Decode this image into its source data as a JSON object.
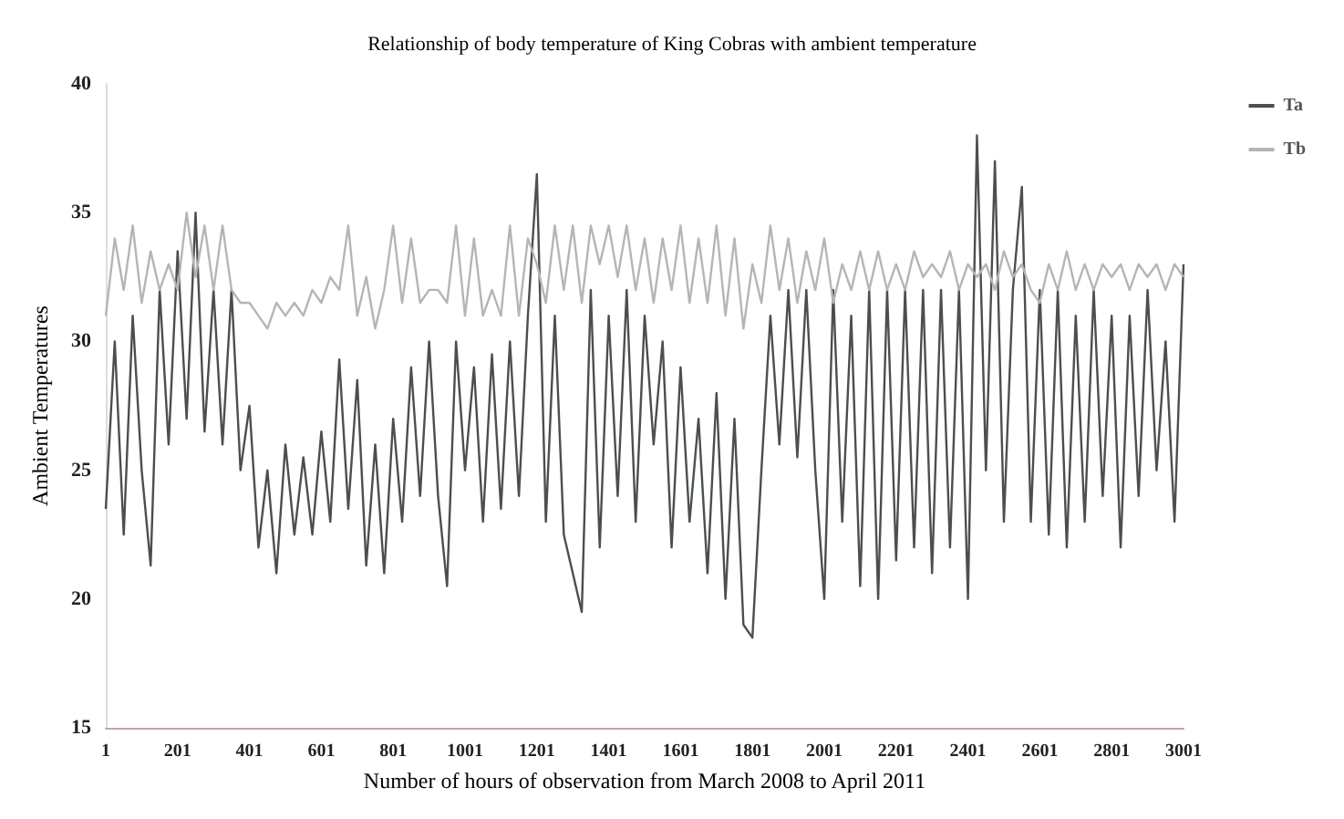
{
  "chart_data": {
    "type": "line",
    "title": "Relationship of body temperature of King Cobras with ambient temperature",
    "xlabel": "Number of hours of observation from March 2008 to April 2011",
    "ylabel": "Ambient Temperatures",
    "x": [
      1,
      26,
      51,
      76,
      101,
      126,
      151,
      176,
      201,
      226,
      251,
      276,
      301,
      326,
      351,
      376,
      401,
      426,
      451,
      476,
      501,
      526,
      551,
      576,
      601,
      626,
      651,
      676,
      701,
      726,
      751,
      776,
      801,
      826,
      851,
      876,
      901,
      926,
      951,
      976,
      1001,
      1026,
      1051,
      1076,
      1101,
      1126,
      1151,
      1176,
      1201,
      1226,
      1251,
      1276,
      1301,
      1326,
      1351,
      1376,
      1401,
      1426,
      1451,
      1476,
      1501,
      1526,
      1551,
      1576,
      1601,
      1626,
      1651,
      1676,
      1701,
      1726,
      1751,
      1776,
      1801,
      1826,
      1851,
      1876,
      1901,
      1926,
      1951,
      1976,
      2001,
      2026,
      2051,
      2076,
      2101,
      2126,
      2151,
      2176,
      2201,
      2226,
      2251,
      2276,
      2301,
      2326,
      2351,
      2376,
      2401,
      2426,
      2451,
      2476,
      2501,
      2526,
      2551,
      2576,
      2601,
      2626,
      2651,
      2676,
      2701,
      2726,
      2751,
      2776,
      2801,
      2826,
      2851,
      2876,
      2901,
      2926,
      2951,
      2976,
      3001
    ],
    "series": [
      {
        "name": "Ta",
        "color": "#4a4f4f",
        "values": [
          23.5,
          30,
          22.5,
          31,
          25,
          21.3,
          32,
          26,
          33.5,
          27,
          35,
          26.5,
          32,
          26,
          32,
          25,
          27.5,
          22,
          25,
          21,
          26,
          22.5,
          25.5,
          22.5,
          26.5,
          23,
          29.3,
          23.5,
          28.5,
          21.3,
          26,
          21,
          27,
          23,
          29,
          24,
          30,
          24,
          20.5,
          30,
          25,
          29,
          23,
          29.5,
          23.5,
          30,
          24,
          31,
          36.5,
          23,
          31,
          22.5,
          21,
          19.5,
          32,
          22,
          31,
          24,
          32,
          23,
          31,
          26,
          30,
          22,
          29,
          23,
          27,
          21,
          28,
          20,
          27,
          19,
          18.5,
          25,
          31,
          26,
          32,
          25.5,
          32,
          25,
          20,
          32,
          23,
          31,
          20.5,
          32,
          20,
          32,
          21.5,
          32,
          22,
          32,
          21,
          32,
          22,
          32,
          20,
          38,
          25,
          37,
          23,
          32,
          36,
          23,
          32,
          22.5,
          32,
          22,
          31,
          23,
          32,
          24,
          31,
          22,
          31,
          24,
          32,
          25,
          30,
          23,
          33
        ]
      },
      {
        "name": "Tb",
        "color": "#b5b5b5",
        "values": [
          31,
          34,
          32,
          34.5,
          31.5,
          33.5,
          32,
          33,
          32,
          35,
          32.5,
          34.5,
          32,
          34.5,
          32,
          31.5,
          31.5,
          31,
          30.5,
          31.5,
          31,
          31.5,
          31,
          32,
          31.5,
          32.5,
          32,
          34.5,
          31,
          32.5,
          30.5,
          32,
          34.5,
          31.5,
          34,
          31.5,
          32,
          32,
          31.5,
          34.5,
          31,
          34,
          31,
          32,
          31,
          34.5,
          31,
          34,
          33,
          31.5,
          34.5,
          32,
          34.5,
          31.5,
          34.5,
          33,
          34.5,
          32.5,
          34.5,
          32,
          34,
          31.5,
          34,
          32,
          34.5,
          31.5,
          34,
          31.5,
          34.5,
          31,
          34,
          30.5,
          33,
          31.5,
          34.5,
          32,
          34,
          31.5,
          33.5,
          32,
          34,
          31.5,
          33,
          32,
          33.5,
          32,
          33.5,
          32,
          33,
          32,
          33.5,
          32.5,
          33,
          32.5,
          33.5,
          32,
          33,
          32.5,
          33,
          32,
          33.5,
          32.5,
          33,
          32,
          31.5,
          33,
          32,
          33.5,
          32,
          33,
          32,
          33,
          32.5,
          33,
          32,
          33,
          32.5,
          33,
          32,
          33,
          32.5
        ]
      }
    ],
    "xlim": [
      1,
      3001
    ],
    "xticks": [
      1,
      201,
      401,
      601,
      801,
      1001,
      1201,
      1401,
      1601,
      1801,
      2001,
      2201,
      2401,
      2601,
      2801,
      3001
    ],
    "ylim": [
      15,
      40
    ],
    "yticks": [
      15,
      20,
      25,
      30,
      35,
      40
    ],
    "grid": false,
    "legend": "top right",
    "marker": "none",
    "line_style": "solid"
  }
}
